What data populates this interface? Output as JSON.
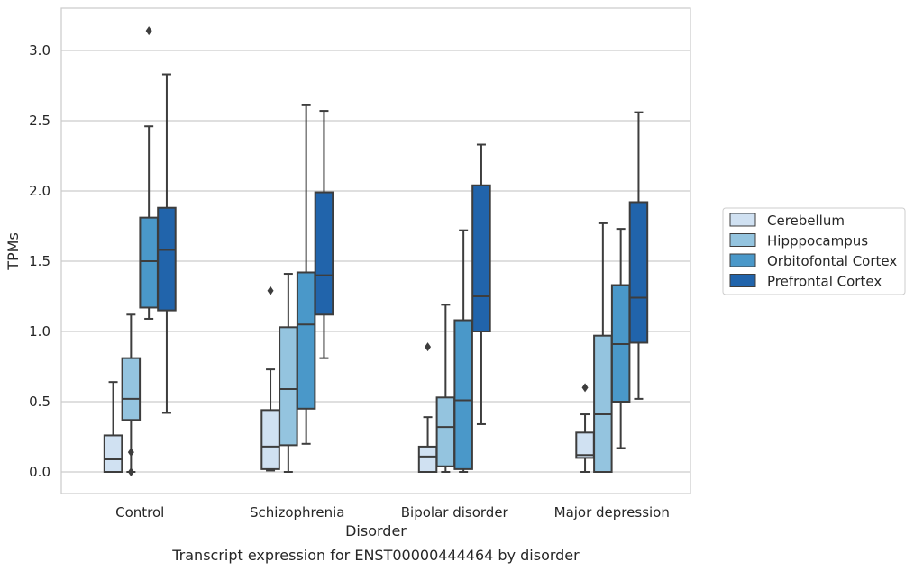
{
  "chart_data": {
    "type": "box",
    "caption": "Transcript expression for ENST00000444464 by disorder",
    "xlabel": "Disorder",
    "ylabel": "TPMs",
    "ylim": [
      -0.15,
      3.3
    ],
    "yticks": [
      "0.0",
      "0.5",
      "1.0",
      "1.5",
      "2.0",
      "2.5",
      "3.0"
    ],
    "grid": "horizontal",
    "legend_position": "right",
    "categories": [
      "Control",
      "Schizophrenia",
      "Bipolar disorder",
      "Major depression"
    ],
    "series": [
      {
        "name": "Cerebellum",
        "color": "#d0e1f2",
        "boxes": [
          {
            "whislo": 0.0,
            "q1": 0.0,
            "med": 0.09,
            "q3": 0.26,
            "whishi": 0.64,
            "fliers": []
          },
          {
            "whislo": 0.01,
            "q1": 0.02,
            "med": 0.18,
            "q3": 0.44,
            "whishi": 0.73,
            "fliers": [
              1.29
            ]
          },
          {
            "whislo": 0.0,
            "q1": 0.0,
            "med": 0.11,
            "q3": 0.18,
            "whishi": 0.39,
            "fliers": [
              0.89
            ]
          },
          {
            "whislo": 0.0,
            "q1": 0.1,
            "med": 0.12,
            "q3": 0.28,
            "whishi": 0.41,
            "fliers": [
              0.6
            ]
          }
        ]
      },
      {
        "name": "Hipppocampus",
        "color": "#94c4df",
        "boxes": [
          {
            "whislo": 0.0,
            "q1": 0.37,
            "med": 0.52,
            "q3": 0.81,
            "whishi": 1.12,
            "fliers": [
              0.14,
              0.0
            ]
          },
          {
            "whislo": 0.0,
            "q1": 0.19,
            "med": 0.59,
            "q3": 1.03,
            "whishi": 1.41,
            "fliers": []
          },
          {
            "whislo": 0.0,
            "q1": 0.04,
            "med": 0.32,
            "q3": 0.53,
            "whishi": 1.19,
            "fliers": []
          },
          {
            "whislo": 0.0,
            "q1": 0.0,
            "med": 0.41,
            "q3": 0.97,
            "whishi": 1.77,
            "fliers": []
          }
        ]
      },
      {
        "name": "Orbitofontal Cortex",
        "color": "#4a98c9",
        "boxes": [
          {
            "whislo": 1.09,
            "q1": 1.17,
            "med": 1.5,
            "q3": 1.81,
            "whishi": 2.46,
            "fliers": [
              3.14
            ]
          },
          {
            "whislo": 0.2,
            "q1": 0.45,
            "med": 1.05,
            "q3": 1.42,
            "whishi": 2.61,
            "fliers": []
          },
          {
            "whislo": 0.0,
            "q1": 0.02,
            "med": 0.51,
            "q3": 1.08,
            "whishi": 1.72,
            "fliers": []
          },
          {
            "whislo": 0.17,
            "q1": 0.5,
            "med": 0.91,
            "q3": 1.33,
            "whishi": 1.73,
            "fliers": []
          }
        ]
      },
      {
        "name": "Prefrontal Cortex",
        "color": "#2164ab",
        "boxes": [
          {
            "whislo": 0.42,
            "q1": 1.15,
            "med": 1.58,
            "q3": 1.88,
            "whishi": 2.83,
            "fliers": []
          },
          {
            "whislo": 0.81,
            "q1": 1.12,
            "med": 1.4,
            "q3": 1.99,
            "whishi": 2.57,
            "fliers": []
          },
          {
            "whislo": 0.34,
            "q1": 1.0,
            "med": 1.25,
            "q3": 2.04,
            "whishi": 2.33,
            "fliers": []
          },
          {
            "whislo": 0.52,
            "q1": 0.92,
            "med": 1.24,
            "q3": 1.92,
            "whishi": 2.56,
            "fliers": []
          }
        ]
      }
    ]
  }
}
